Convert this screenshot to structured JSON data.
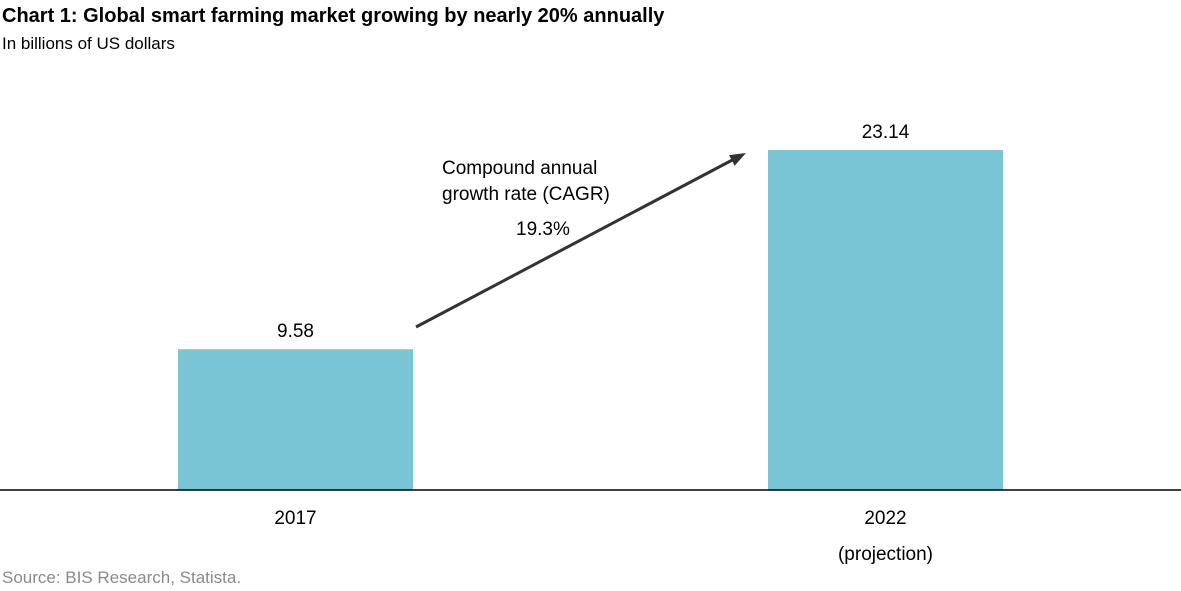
{
  "chart_data": {
    "type": "bar",
    "title": "Chart 1: Global smart farming market growing by nearly 20% annually",
    "subtitle": "In billions of US dollars",
    "categories": [
      "2017",
      "2022"
    ],
    "category_notes": [
      "",
      "(projection)"
    ],
    "values": [
      9.58,
      23.14
    ],
    "data_labels": [
      "9.58",
      "23.14"
    ],
    "xlabel": "",
    "ylabel": "",
    "grid": false,
    "bar_color": "#7AC5D5",
    "annotation": {
      "text_lines": [
        "Compound annual",
        "growth rate (CAGR)"
      ],
      "value": "19.3%",
      "arrow_color": "#333333"
    },
    "source": "Source: BIS Research, Statista."
  }
}
